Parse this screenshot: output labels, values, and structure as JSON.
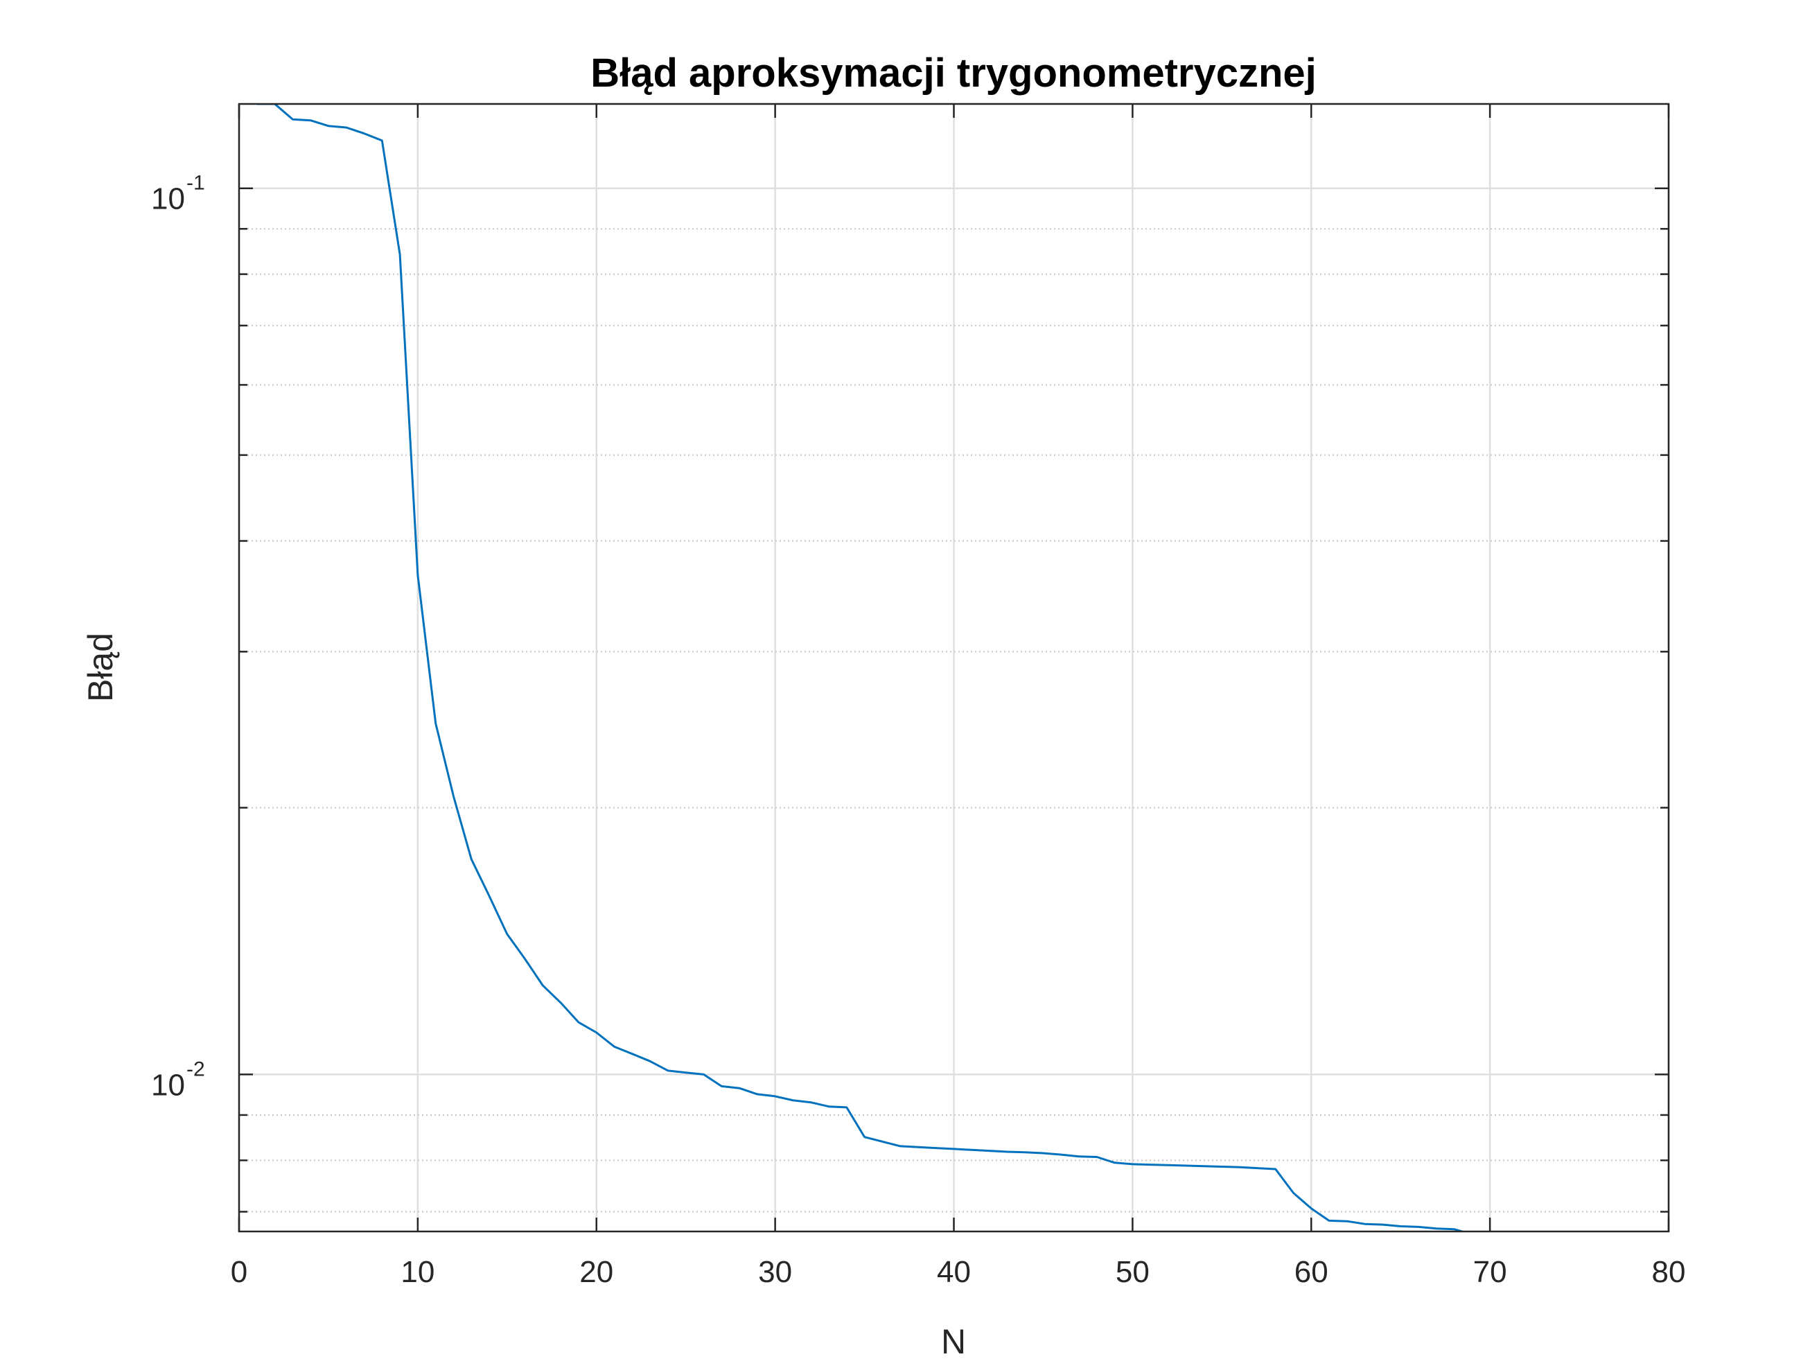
{
  "chart_data": {
    "type": "line",
    "title": "Błąd aproksymacji trygonometrycznej",
    "xlabel": "N",
    "ylabel": "Błąd",
    "xlim": [
      0,
      80
    ],
    "ylim": [
      0.00665,
      0.1245
    ],
    "yscale": "log",
    "grid": true,
    "line_color": "#0072bd",
    "x_ticks": [
      0,
      10,
      20,
      30,
      40,
      50,
      60,
      70,
      80
    ],
    "x_tick_labels": [
      "0",
      "10",
      "20",
      "30",
      "40",
      "50",
      "60",
      "70",
      "80"
    ],
    "y_ticks": [
      {
        "value": 0.1,
        "base": "10",
        "exponent": "-1"
      },
      {
        "value": 0.01,
        "base": "10",
        "exponent": "-2"
      }
    ],
    "y_minor_ticks": [
      0.007,
      0.008,
      0.009,
      0.02,
      0.03,
      0.04,
      0.05,
      0.06,
      0.07,
      0.08,
      0.09
    ],
    "series": [
      {
        "name": "Błąd",
        "x": [
          1,
          2,
          3,
          4,
          5,
          6,
          7,
          8,
          9,
          10,
          11,
          12,
          13,
          14,
          15,
          16,
          17,
          18,
          19,
          20,
          21,
          22,
          23,
          24,
          25,
          26,
          27,
          28,
          29,
          30,
          31,
          32,
          33,
          34,
          35,
          36,
          37,
          38,
          39,
          40,
          41,
          42,
          43,
          44,
          45,
          46,
          47,
          48,
          49,
          50,
          51,
          52,
          53,
          54,
          55,
          56,
          57,
          58,
          59,
          60,
          61,
          62,
          63,
          64,
          65,
          66,
          67,
          68,
          69,
          70,
          71
        ],
        "y": [
          0.1245,
          0.1245,
          0.1196,
          0.1193,
          0.1176,
          0.1171,
          0.1153,
          0.1132,
          0.0842,
          0.0366,
          0.0249,
          0.0206,
          0.0175,
          0.0159,
          0.0144,
          0.0135,
          0.0126,
          0.01205,
          0.01145,
          0.01115,
          0.01075,
          0.01055,
          0.01035,
          0.0101,
          0.01005,
          0.01,
          0.0097,
          0.00965,
          0.0095,
          0.00945,
          0.00935,
          0.0093,
          0.0092,
          0.00918,
          0.0085,
          0.0084,
          0.0083,
          0.00828,
          0.00826,
          0.00824,
          0.00822,
          0.0082,
          0.00818,
          0.00817,
          0.00815,
          0.00812,
          0.00808,
          0.00807,
          0.00795,
          0.00792,
          0.00791,
          0.0079,
          0.00789,
          0.00788,
          0.00787,
          0.00786,
          0.00784,
          0.00782,
          0.00735,
          0.00706,
          0.00684,
          0.00683,
          0.00678,
          0.00677,
          0.00674,
          0.00673,
          0.0067,
          0.00669,
          0.0066,
          0.00658,
          0.00654
        ]
      }
    ]
  }
}
